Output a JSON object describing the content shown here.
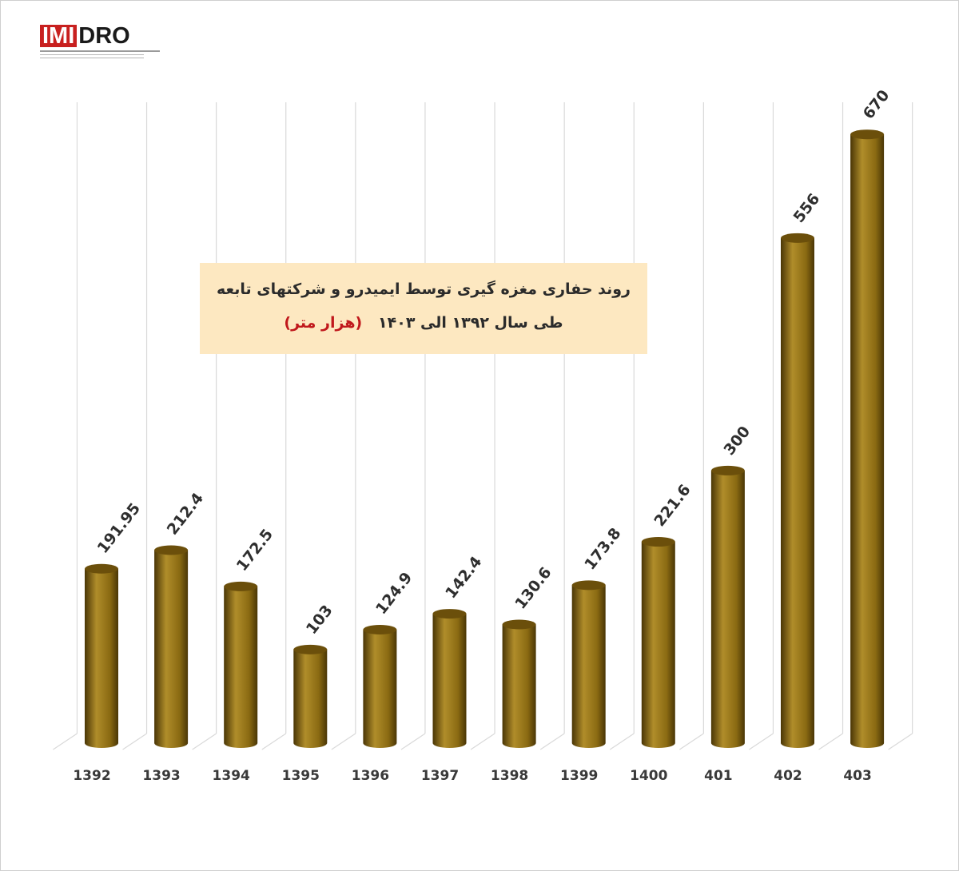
{
  "logo": {
    "brand_a": "IMI",
    "brand_b": "DRO"
  },
  "title_box": {
    "line1": "روند حفاری مغزه گیری توسط ایمیدرو و شرکتهای تابعه",
    "line2": "طی سال ۱۳۹۲ الی ۱۴۰۳",
    "unit": "(هزار متر)"
  },
  "colors": {
    "bar_body": "#8a6a12",
    "bar_light": "#b08d2a",
    "bar_dark": "#4a3606",
    "bar_top": "#6b4f0b",
    "grid": "#d9d9d9",
    "label": "#2e2e2e"
  },
  "chart_data": {
    "type": "bar",
    "categories": [
      "1392",
      "1393",
      "1394",
      "1395",
      "1396",
      "1397",
      "1398",
      "1399",
      "1400",
      "401",
      "402",
      "403"
    ],
    "values": [
      191.95,
      212.4,
      172.5,
      103,
      124.9,
      142.4,
      130.6,
      173.8,
      221.6,
      300,
      556,
      670
    ],
    "value_labels": [
      "191.95",
      "212.4",
      "172.5",
      "103",
      "124.9",
      "142.4",
      "130.6",
      "173.8",
      "221.6",
      "300",
      "556",
      "670"
    ],
    "title": "روند حفاری مغزه گیری توسط ایمیدرو و شرکتهای تابعه",
    "subtitle": "طی سال ۱۳۹۲ الی ۱۴۰۳ (هزار متر)",
    "xlabel": "",
    "ylabel": "",
    "ylim": [
      0,
      700
    ],
    "grid": true,
    "style": "3d-cylinder"
  }
}
